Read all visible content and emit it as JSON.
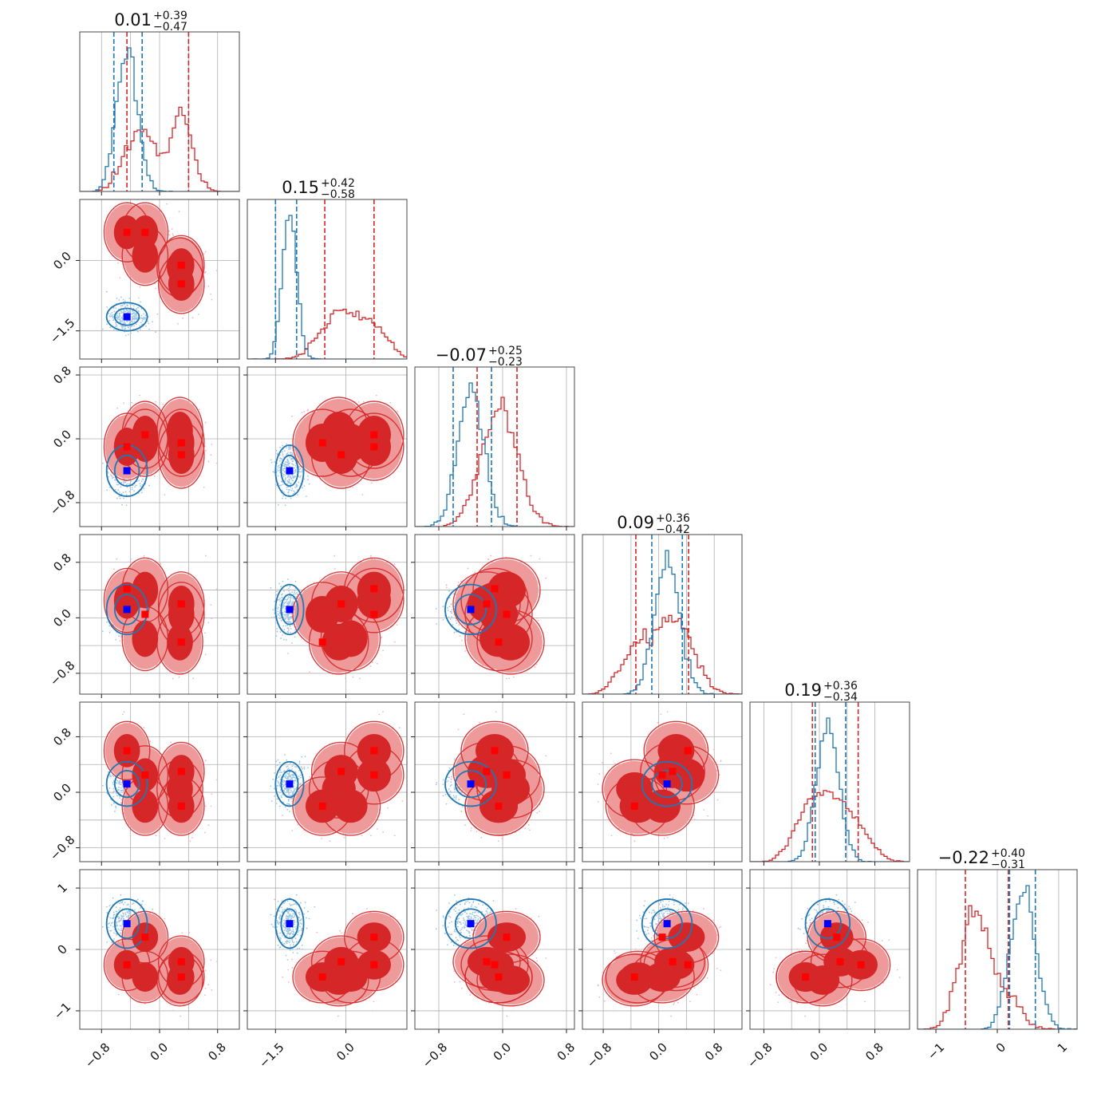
{
  "chart_data": {
    "type": "corner",
    "n_params": 6,
    "grid": true,
    "colors": {
      "red": "#d62728",
      "red_fill_inner": "#d62728",
      "red_fill_outer": "#ee9a9b",
      "blue": "#1f77b4",
      "blue_marker": "#0000ff",
      "red_marker": "#ff0000",
      "scatter_red": "#f4b6c2",
      "scatter_blue": "#9ec7e6"
    },
    "params": [
      {
        "range": [
          -1.1,
          1.1
        ],
        "ticks": [
          -0.8,
          0.0,
          0.8
        ],
        "tick_labels": [
          "−0.8",
          "0.0",
          "0.8"
        ],
        "grid_values": [
          -0.8,
          -0.4,
          0.0,
          0.4,
          0.8
        ]
      },
      {
        "range": [
          -2.1,
          1.3
        ],
        "ticks": [
          -1.5,
          0.0
        ],
        "tick_labels": [
          "−1.5",
          "0.0"
        ],
        "grid_values": [
          -1.5,
          0.0
        ]
      },
      {
        "range": [
          -1.1,
          0.9
        ],
        "ticks": [
          -0.8,
          0.0,
          0.8
        ],
        "tick_labels": [
          "−0.8",
          "0.0",
          "0.8"
        ],
        "grid_values": [
          -0.8,
          0.0,
          0.8
        ]
      },
      {
        "range": [
          -1.1,
          1.2
        ],
        "ticks": [
          -0.8,
          0.0,
          0.8
        ],
        "tick_labels": [
          "−0.8",
          "0.0",
          "0.8"
        ],
        "grid_values": [
          -0.8,
          -0.4,
          0.0,
          0.4,
          0.8
        ]
      },
      {
        "range": [
          -1.0,
          1.3
        ],
        "ticks": [
          -0.8,
          0.0,
          0.8
        ],
        "tick_labels": [
          "−0.8",
          "0.0",
          "0.8"
        ],
        "grid_values": [
          -0.8,
          -0.4,
          0.0,
          0.4,
          0.8
        ]
      },
      {
        "range": [
          -1.3,
          1.3
        ],
        "ticks": [
          -1,
          0,
          1
        ],
        "tick_labels": [
          "−1",
          "0",
          "1"
        ],
        "grid_values": [
          -1,
          0,
          1
        ]
      }
    ],
    "diagonal_titles": [
      {
        "median": "0.01",
        "plus": "+0.39",
        "minus": "−0.47"
      },
      {
        "median": "0.15",
        "plus": "+0.42",
        "minus": "−0.58"
      },
      {
        "median": "−0.07",
        "plus": "+0.25",
        "minus": "−0.23"
      },
      {
        "median": "0.09",
        "plus": "+0.36",
        "minus": "−0.42"
      },
      {
        "median": "0.19",
        "plus": "+0.36",
        "minus": "−0.34"
      },
      {
        "median": "−0.22",
        "plus": "+0.40",
        "minus": "−0.31"
      }
    ],
    "series": [
      {
        "color": "#d62728",
        "modes": [
          [
            -0.45,
            0.6,
            -0.1,
            0.25,
            0.6,
            -0.25
          ],
          [
            -0.2,
            0.6,
            0.05,
            0.4,
            0.25,
            0.2
          ],
          [
            0.3,
            -0.1,
            -0.2,
            0.2,
            0.3,
            -0.2
          ],
          [
            0.3,
            -0.5,
            -0.05,
            0.05,
            -0.2,
            -0.45
          ],
          [
            0.28,
            -0.15,
            0.1,
            -0.35,
            0.05,
            -0.5
          ],
          [
            -0.2,
            0.1,
            -0.05,
            -0.3,
            -0.2,
            -0.45
          ]
        ],
        "spreads": [
          0.15,
          0.3,
          0.2,
          0.22,
          0.2,
          0.2
        ],
        "hist_quantiles": [
          [
            -0.45,
            0.4
          ],
          [
            -0.45,
            0.6
          ],
          [
            -0.32,
            0.18
          ],
          [
            -0.33,
            0.43
          ],
          [
            -0.1,
            0.56
          ],
          [
            -0.52,
            0.18
          ]
        ],
        "markers": [
          [
            -0.45,
            0.6,
            -0.1,
            0.42,
            0.6,
            -0.25
          ],
          [
            -0.2,
            0.6,
            0.05,
            0.05,
            0.25,
            0.2
          ],
          [
            0.3,
            -0.1,
            -0.2,
            0.2,
            0.3,
            -0.2
          ],
          [
            0.3,
            -0.5,
            -0.05,
            -0.35,
            -0.2,
            -0.45
          ]
        ]
      },
      {
        "color": "#1f77b4",
        "modes": [
          [
            -0.45,
            -1.2,
            -0.4,
            0.12,
            0.12,
            0.42
          ]
        ],
        "spreads": [
          0.14,
          0.15,
          0.16,
          0.18,
          0.16,
          0.2
        ],
        "hist_quantiles": [
          [
            -0.63,
            -0.24
          ],
          [
            -1.5,
            -1.05
          ],
          [
            -0.62,
            -0.14
          ],
          [
            -0.1,
            0.34
          ],
          [
            -0.06,
            0.38
          ],
          [
            0.2,
            0.62
          ]
        ],
        "markers": [
          [
            -0.45,
            -1.2,
            -0.4,
            0.12,
            0.12,
            0.42
          ]
        ]
      }
    ]
  }
}
